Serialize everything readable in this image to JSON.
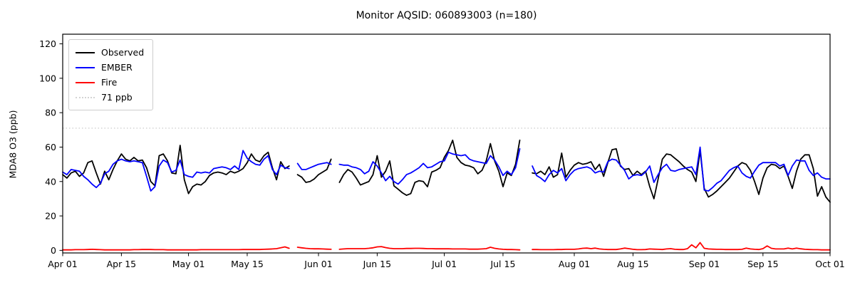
{
  "title": "Monitor AQSID: 060893003 (n=180)",
  "axes": {
    "ylabel": "MDA8 O3 (ppb)",
    "yticks": [
      0,
      20,
      40,
      60,
      80,
      100,
      120
    ],
    "ylim": [
      -1.5,
      125.6
    ],
    "xtick_days": [
      0,
      14,
      30,
      44,
      61,
      75,
      91,
      105,
      122,
      136,
      153,
      167,
      183
    ],
    "xtick_labels": [
      "Apr 01",
      "Apr 15",
      "May 01",
      "May 15",
      "Jun 01",
      "Jun 15",
      "Jul 01",
      "Jul 15",
      "Aug 01",
      "Aug 15",
      "Sep 01",
      "Sep 15",
      "Oct 01"
    ]
  },
  "legend": {
    "items": [
      {
        "label": "Observed",
        "color": "#000000",
        "style": "solid"
      },
      {
        "label": "EMBER",
        "color": "#0000ff",
        "style": "solid"
      },
      {
        "label": "Fire",
        "color": "#ff0000",
        "style": "solid"
      },
      {
        "label": "71 ppb",
        "color": "#d3d3d3",
        "style": "dotted"
      }
    ]
  },
  "chart_data": {
    "type": "line",
    "title": "Monitor AQSID: 060893003 (n=180)",
    "xlabel": "",
    "ylabel": "MDA8 O3 (ppb)",
    "x_unit": "days since Apr 01 (daily values, Apr 01 - Oct 01; null = missing day)",
    "n_points": 180,
    "grid": false,
    "legend_position": "upper left",
    "threshold": {
      "label": "71 ppb",
      "value": 71,
      "color": "#d3d3d3",
      "style": "dotted"
    },
    "series": [
      {
        "name": "Observed",
        "color": "#000000",
        "values": [
          44,
          42,
          45,
          46,
          43,
          45,
          51,
          52,
          45,
          38.5,
          46,
          41,
          47,
          52,
          56,
          53,
          52,
          54,
          52,
          52.5,
          48,
          40,
          37.5,
          55,
          56,
          52,
          45,
          44.5,
          61,
          41,
          33,
          37,
          38.5,
          38,
          40,
          43.5,
          45,
          45.5,
          45,
          44,
          46,
          45,
          46,
          47.5,
          51,
          56,
          52.5,
          51.5,
          55,
          57,
          48,
          41,
          51.5,
          47.5,
          49,
          null,
          44,
          42.5,
          39.5,
          40,
          41.5,
          44,
          45.5,
          47,
          53,
          null,
          39.5,
          44,
          47,
          45.5,
          42,
          38,
          39,
          40,
          44,
          55,
          42.5,
          46,
          52,
          37.5,
          35.5,
          33.5,
          32,
          33,
          39.5,
          40.5,
          40,
          37,
          45.5,
          46.5,
          48,
          54,
          58,
          64,
          54,
          51,
          49.5,
          49,
          48,
          44.5,
          46.5,
          52,
          62,
          52,
          46,
          37,
          45,
          43.5,
          50,
          64,
          null,
          null,
          45,
          44.5,
          46,
          44,
          48.5,
          42.5,
          44,
          56.5,
          42.5,
          46.5,
          49.5,
          51,
          50,
          50.5,
          51.5,
          47,
          50,
          43,
          51,
          58.5,
          59,
          49,
          47,
          47.5,
          43.5,
          46,
          44,
          46,
          37,
          30,
          41.5,
          53,
          56,
          55.5,
          53.5,
          51.5,
          49,
          47,
          45.5,
          40,
          58,
          36,
          31,
          32.5,
          34.5,
          37,
          39.5,
          42,
          45.5,
          49,
          51,
          50,
          46.5,
          40,
          32.5,
          42,
          48,
          50,
          49.5,
          47.5,
          49,
          43,
          36,
          46,
          53,
          55.5,
          55.5,
          47.5,
          31.5,
          37,
          31,
          28
        ]
      },
      {
        "name": "EMBER",
        "color": "#0000ff",
        "values": [
          45.5,
          44,
          47,
          46.5,
          46,
          43,
          41,
          38.5,
          36.5,
          39,
          44.5,
          46,
          50,
          52,
          53,
          52,
          51.5,
          52,
          51.5,
          51,
          43,
          34.5,
          37,
          49,
          52.5,
          51,
          45.5,
          46.5,
          52.5,
          44,
          43,
          42.5,
          45.5,
          45,
          45.5,
          45,
          47.5,
          48,
          48.5,
          48,
          47,
          49,
          47,
          58,
          53.5,
          51.5,
          50,
          49.5,
          53,
          55,
          47,
          44,
          49.5,
          48,
          47.5,
          null,
          50.5,
          47,
          47,
          48,
          49,
          50,
          50.5,
          51,
          50,
          null,
          50,
          49.5,
          49.5,
          48.5,
          48,
          47,
          44.5,
          46,
          51.5,
          49,
          45,
          40.5,
          43,
          40,
          38.5,
          41,
          44,
          45,
          46.5,
          48,
          50.5,
          48,
          48.5,
          50,
          51.5,
          52,
          57,
          56,
          55.5,
          55,
          55.5,
          53,
          52,
          51.5,
          51,
          50.5,
          55,
          52.5,
          48.5,
          43.5,
          46,
          44,
          48,
          59,
          null,
          null,
          49,
          43.5,
          42,
          40,
          44,
          46.5,
          45,
          47.5,
          40.5,
          44,
          46.5,
          47.5,
          48,
          48.5,
          47.5,
          45,
          46,
          45.5,
          51.5,
          53,
          52.5,
          49.5,
          46.5,
          41.5,
          43.5,
          44,
          43.5,
          45.5,
          49,
          39.5,
          44,
          48,
          50,
          46.5,
          46,
          47,
          47.5,
          48,
          48.5,
          44,
          60,
          35,
          34.5,
          36.5,
          39,
          40.5,
          43.5,
          46.5,
          48,
          49,
          45,
          43,
          42,
          46,
          49.5,
          51,
          51,
          51,
          51,
          49,
          50,
          43.5,
          49,
          52.5,
          52,
          52,
          46.5,
          43.5,
          45,
          42.5,
          41.5,
          41.5
        ]
      },
      {
        "name": "Fire",
        "color": "#ff0000",
        "values": [
          0.3,
          0.3,
          0.3,
          0.4,
          0.4,
          0.4,
          0.5,
          0.6,
          0.5,
          0.4,
          0.3,
          0.3,
          0.3,
          0.3,
          0.3,
          0.3,
          0.3,
          0.4,
          0.4,
          0.5,
          0.5,
          0.5,
          0.4,
          0.4,
          0.4,
          0.3,
          0.3,
          0.3,
          0.3,
          0.3,
          0.3,
          0.3,
          0.3,
          0.4,
          0.4,
          0.4,
          0.4,
          0.4,
          0.4,
          0.4,
          0.4,
          0.4,
          0.4,
          0.5,
          0.5,
          0.5,
          0.5,
          0.5,
          0.6,
          0.7,
          0.8,
          1.0,
          1.5,
          2.0,
          1.2,
          null,
          1.8,
          1.5,
          1.2,
          1.0,
          0.9,
          0.9,
          0.8,
          0.7,
          0.6,
          null,
          0.6,
          0.8,
          1.0,
          1.0,
          1.0,
          1.0,
          1.0,
          1.2,
          1.5,
          2.0,
          2.2,
          1.6,
          1.2,
          1.0,
          1.0,
          1.0,
          1.1,
          1.1,
          1.2,
          1.2,
          1.1,
          1.0,
          1.0,
          0.9,
          0.9,
          0.9,
          0.9,
          0.8,
          0.8,
          0.8,
          0.8,
          0.7,
          0.7,
          0.7,
          0.8,
          1.0,
          1.8,
          1.2,
          0.8,
          0.6,
          0.5,
          0.5,
          0.4,
          0.3,
          null,
          null,
          0.5,
          0.5,
          0.4,
          0.4,
          0.4,
          0.4,
          0.5,
          0.5,
          0.6,
          0.6,
          0.6,
          0.8,
          1.2,
          1.3,
          1.0,
          1.3,
          0.8,
          0.6,
          0.5,
          0.5,
          0.5,
          0.8,
          1.3,
          1.0,
          0.6,
          0.4,
          0.4,
          0.5,
          0.8,
          0.7,
          0.6,
          0.5,
          0.8,
          1.0,
          0.6,
          0.5,
          0.5,
          1.0,
          3.2,
          1.5,
          4.5,
          1.2,
          0.8,
          0.7,
          0.6,
          0.6,
          0.5,
          0.5,
          0.5,
          0.5,
          0.6,
          1.3,
          0.8,
          0.6,
          0.5,
          1.0,
          2.6,
          1.2,
          0.8,
          0.8,
          0.8,
          1.3,
          0.8,
          1.3,
          0.9,
          0.6,
          0.5,
          0.4,
          0.4,
          0.3,
          0.3,
          0.3
        ]
      }
    ]
  }
}
